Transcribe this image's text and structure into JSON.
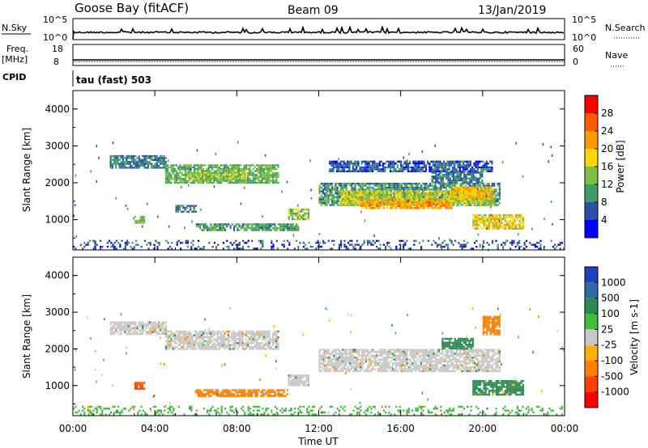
{
  "header": {
    "station": "Goose Bay (fitACF)",
    "beam": "Beam 09",
    "date": "13/Jan/2019"
  },
  "top_panels": {
    "nsky_label": "N.Sky",
    "nsky_ticks": [
      "10^5",
      "10^0"
    ],
    "nsearch_label": "N.Search",
    "nsearch_ticks": [
      "10^5",
      "10^0"
    ],
    "freq_label_line1": "Freq.",
    "freq_label_line2": "[MHz]",
    "freq_ticks": [
      "18",
      "8"
    ],
    "nave_label": "Nave",
    "nave_ticks": [
      "60",
      "0"
    ],
    "cpid_label": "CPID",
    "cpid_value": "tau (fast) 503"
  },
  "colors": {
    "power_scale": [
      "#0000ff",
      "#2b50a8",
      "#3f9c66",
      "#7fbf3f",
      "#ffd700",
      "#ff9900",
      "#ff5a00",
      "#ff0000"
    ],
    "velocity_scale": [
      "#2040c0",
      "#2f6aa8",
      "#2e8a55",
      "#3fbf3f",
      "#c8c8c8",
      "#ffb000",
      "#ff8000",
      "#ff4000",
      "#ff0000"
    ]
  },
  "chart_data": [
    {
      "type": "heatmap",
      "quantity": "Power",
      "xlabel": "Time UT",
      "ylabel": "Slant Range [km]",
      "x_ticks": [
        "00:00",
        "04:00",
        "08:00",
        "12:00",
        "16:00",
        "20:00",
        "00:00"
      ],
      "xlim_hours": [
        0,
        24
      ],
      "ylim_km": [
        180,
        4500
      ],
      "y_ticks": [
        "1000",
        "2000",
        "3000",
        "4000"
      ],
      "colorbar_label": "Power [dB]",
      "colorbar_ticks": [
        "4",
        "8",
        "12",
        "16",
        "20",
        "24",
        "28"
      ],
      "colorbar_range": [
        0,
        32
      ],
      "regions": [
        {
          "t0": 1.8,
          "t1": 4.5,
          "r0": 2400,
          "r1": 2750,
          "level": 8
        },
        {
          "t0": 4.5,
          "t1": 10.0,
          "r0": 2000,
          "r1": 2500,
          "level": 12
        },
        {
          "t0": 5.5,
          "t1": 8.5,
          "r0": 2100,
          "r1": 2300,
          "level": 14
        },
        {
          "t0": 3.0,
          "t1": 3.5,
          "r0": 900,
          "r1": 1100,
          "level": 12
        },
        {
          "t0": 5.0,
          "t1": 6.0,
          "r0": 1200,
          "r1": 1400,
          "level": 8
        },
        {
          "t0": 6.0,
          "t1": 11.0,
          "r0": 700,
          "r1": 900,
          "level": 10
        },
        {
          "t0": 10.5,
          "t1": 11.5,
          "r0": 1000,
          "r1": 1300,
          "level": 14
        },
        {
          "t0": 12.0,
          "t1": 20.8,
          "r0": 1400,
          "r1": 2000,
          "level": 10
        },
        {
          "t0": 13.0,
          "t1": 20.5,
          "r0": 1400,
          "r1": 1800,
          "level": 16
        },
        {
          "t0": 14.0,
          "t1": 18.5,
          "r0": 1300,
          "r1": 1550,
          "level": 22
        },
        {
          "t0": 18.5,
          "t1": 20.5,
          "r0": 1600,
          "r1": 1900,
          "level": 20
        },
        {
          "t0": 12.5,
          "t1": 20.5,
          "r0": 2300,
          "r1": 2600,
          "level": 6
        },
        {
          "t0": 17.5,
          "t1": 20.0,
          "r0": 2000,
          "r1": 2300,
          "level": 8
        },
        {
          "t0": 19.5,
          "t1": 22.0,
          "r0": 750,
          "r1": 1150,
          "level": 18
        },
        {
          "t0": 0.0,
          "t1": 24.0,
          "r0": 200,
          "r1": 450,
          "level": 6
        }
      ]
    },
    {
      "type": "heatmap",
      "quantity": "Velocity",
      "xlabel": "Time UT",
      "ylabel": "Slant Range [km]",
      "x_ticks": [
        "00:00",
        "04:00",
        "08:00",
        "12:00",
        "16:00",
        "20:00",
        "00:00"
      ],
      "xlim_hours": [
        0,
        24
      ],
      "ylim_km": [
        180,
        4500
      ],
      "y_ticks": [
        "1000",
        "2000",
        "3000",
        "4000"
      ],
      "colorbar_label": "Velocity [m s-1]",
      "colorbar_ticks": [
        "1000",
        "500",
        "100",
        "25",
        "-25",
        "-100",
        "-500",
        "-1000"
      ],
      "regions": [
        {
          "t0": 1.8,
          "t1": 4.5,
          "r0": 2400,
          "r1": 2750,
          "velocity": 0
        },
        {
          "t0": 4.5,
          "t1": 10.0,
          "r0": 2000,
          "r1": 2500,
          "velocity": 0
        },
        {
          "t0": 3.0,
          "t1": 3.5,
          "r0": 900,
          "r1": 1100,
          "velocity": -300
        },
        {
          "t0": 6.0,
          "t1": 10.5,
          "r0": 700,
          "r1": 900,
          "velocity": -80
        },
        {
          "t0": 10.5,
          "t1": 11.5,
          "r0": 1000,
          "r1": 1300,
          "velocity": 0
        },
        {
          "t0": 12.0,
          "t1": 20.8,
          "r0": 1400,
          "r1": 2000,
          "velocity": 0
        },
        {
          "t0": 18.0,
          "t1": 19.5,
          "r0": 2000,
          "r1": 2300,
          "velocity": 200
        },
        {
          "t0": 19.5,
          "t1": 22.0,
          "r0": 750,
          "r1": 1150,
          "velocity": 60
        },
        {
          "t0": 20.0,
          "t1": 20.8,
          "r0": 2400,
          "r1": 2900,
          "velocity": -150
        },
        {
          "t0": 0.0,
          "t1": 24.0,
          "r0": 200,
          "r1": 450,
          "velocity": 30
        }
      ]
    }
  ]
}
